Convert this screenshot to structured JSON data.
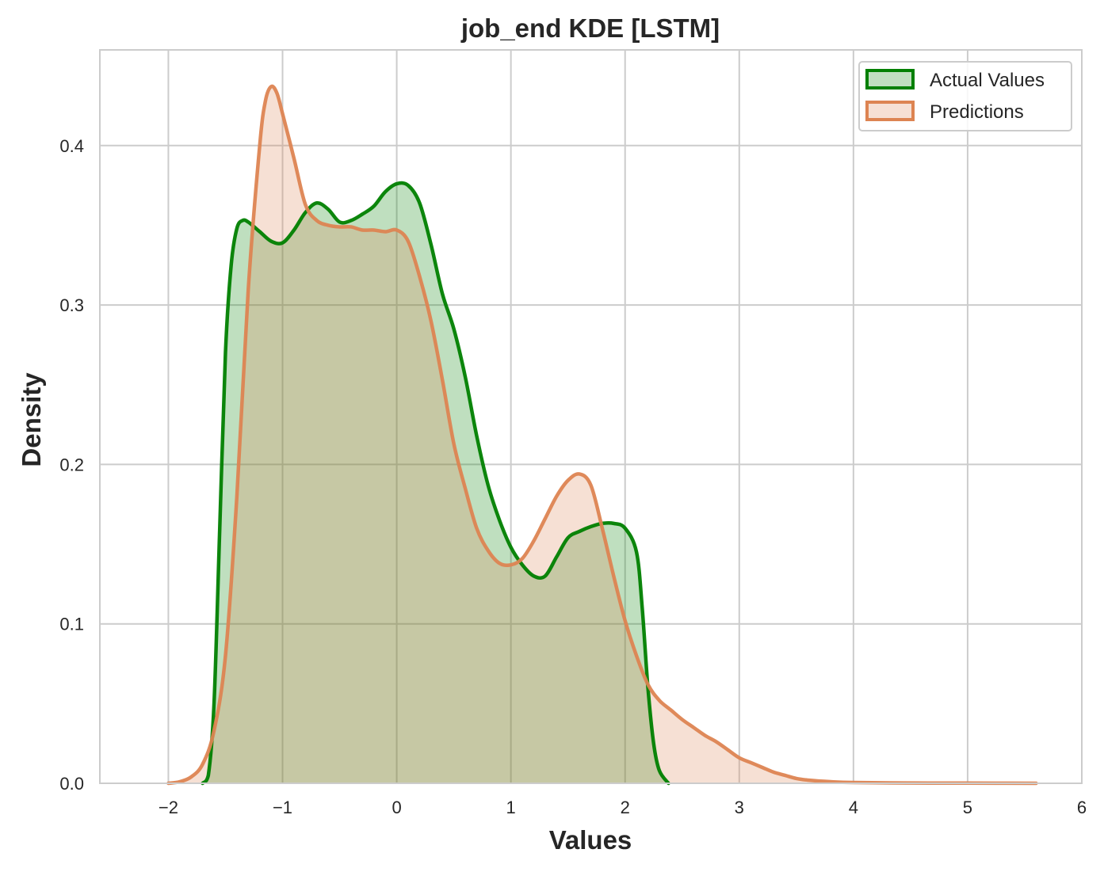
{
  "chart_data": {
    "type": "area",
    "title": "job_end KDE [LSTM]",
    "xlabel": "Values",
    "ylabel": "Density",
    "xlim": [
      -2.6,
      6.0
    ],
    "ylim": [
      0.0,
      0.46
    ],
    "x_ticks": [
      -2,
      -1,
      0,
      1,
      2,
      3,
      4,
      5,
      6
    ],
    "x_tick_labels": [
      "−2",
      "−1",
      "0",
      "1",
      "2",
      "3",
      "4",
      "5",
      "6"
    ],
    "y_ticks": [
      0.0,
      0.1,
      0.2,
      0.3,
      0.4
    ],
    "y_tick_labels": [
      "0.0",
      "0.1",
      "0.2",
      "0.3",
      "0.4"
    ],
    "grid": true,
    "legend_position": "top-right",
    "series": [
      {
        "name": "Actual Values",
        "color": "#008000",
        "points": [
          [
            -1.7,
            0.0
          ],
          [
            -1.65,
            0.005
          ],
          [
            -1.6,
            0.05
          ],
          [
            -1.55,
            0.16
          ],
          [
            -1.5,
            0.27
          ],
          [
            -1.45,
            0.325
          ],
          [
            -1.4,
            0.348
          ],
          [
            -1.35,
            0.353
          ],
          [
            -1.3,
            0.352
          ],
          [
            -1.2,
            0.346
          ],
          [
            -1.1,
            0.34
          ],
          [
            -1.0,
            0.339
          ],
          [
            -0.9,
            0.347
          ],
          [
            -0.8,
            0.358
          ],
          [
            -0.7,
            0.364
          ],
          [
            -0.6,
            0.36
          ],
          [
            -0.5,
            0.352
          ],
          [
            -0.4,
            0.353
          ],
          [
            -0.3,
            0.357
          ],
          [
            -0.2,
            0.362
          ],
          [
            -0.1,
            0.371
          ],
          [
            0.0,
            0.376
          ],
          [
            0.1,
            0.375
          ],
          [
            0.2,
            0.364
          ],
          [
            0.3,
            0.338
          ],
          [
            0.4,
            0.307
          ],
          [
            0.5,
            0.285
          ],
          [
            0.6,
            0.255
          ],
          [
            0.7,
            0.218
          ],
          [
            0.8,
            0.187
          ],
          [
            0.9,
            0.165
          ],
          [
            1.0,
            0.148
          ],
          [
            1.1,
            0.137
          ],
          [
            1.2,
            0.13
          ],
          [
            1.3,
            0.13
          ],
          [
            1.4,
            0.142
          ],
          [
            1.5,
            0.154
          ],
          [
            1.6,
            0.158
          ],
          [
            1.7,
            0.161
          ],
          [
            1.8,
            0.163
          ],
          [
            1.9,
            0.163
          ],
          [
            2.0,
            0.16
          ],
          [
            2.1,
            0.145
          ],
          [
            2.15,
            0.11
          ],
          [
            2.2,
            0.06
          ],
          [
            2.25,
            0.025
          ],
          [
            2.3,
            0.008
          ],
          [
            2.38,
            0.0
          ]
        ]
      },
      {
        "name": "Predictions",
        "color": "#dd8452",
        "points": [
          [
            -2.0,
            0.0
          ],
          [
            -1.9,
            0.001
          ],
          [
            -1.8,
            0.004
          ],
          [
            -1.7,
            0.012
          ],
          [
            -1.6,
            0.033
          ],
          [
            -1.5,
            0.08
          ],
          [
            -1.4,
            0.18
          ],
          [
            -1.3,
            0.31
          ],
          [
            -1.2,
            0.4
          ],
          [
            -1.15,
            0.428
          ],
          [
            -1.1,
            0.437
          ],
          [
            -1.05,
            0.433
          ],
          [
            -1.0,
            0.42
          ],
          [
            -0.9,
            0.392
          ],
          [
            -0.8,
            0.363
          ],
          [
            -0.7,
            0.353
          ],
          [
            -0.6,
            0.35
          ],
          [
            -0.5,
            0.349
          ],
          [
            -0.4,
            0.349
          ],
          [
            -0.3,
            0.347
          ],
          [
            -0.2,
            0.347
          ],
          [
            -0.1,
            0.346
          ],
          [
            0.0,
            0.347
          ],
          [
            0.1,
            0.34
          ],
          [
            0.2,
            0.318
          ],
          [
            0.3,
            0.29
          ],
          [
            0.4,
            0.253
          ],
          [
            0.5,
            0.213
          ],
          [
            0.6,
            0.185
          ],
          [
            0.7,
            0.16
          ],
          [
            0.8,
            0.146
          ],
          [
            0.9,
            0.138
          ],
          [
            1.0,
            0.137
          ],
          [
            1.1,
            0.141
          ],
          [
            1.2,
            0.152
          ],
          [
            1.3,
            0.166
          ],
          [
            1.4,
            0.18
          ],
          [
            1.5,
            0.19
          ],
          [
            1.6,
            0.194
          ],
          [
            1.7,
            0.187
          ],
          [
            1.8,
            0.16
          ],
          [
            1.9,
            0.13
          ],
          [
            2.0,
            0.102
          ],
          [
            2.1,
            0.08
          ],
          [
            2.2,
            0.062
          ],
          [
            2.3,
            0.052
          ],
          [
            2.4,
            0.046
          ],
          [
            2.5,
            0.04
          ],
          [
            2.6,
            0.035
          ],
          [
            2.7,
            0.03
          ],
          [
            2.8,
            0.026
          ],
          [
            2.9,
            0.021
          ],
          [
            3.0,
            0.016
          ],
          [
            3.1,
            0.013
          ],
          [
            3.2,
            0.01
          ],
          [
            3.3,
            0.007
          ],
          [
            3.4,
            0.005
          ],
          [
            3.5,
            0.003
          ],
          [
            3.6,
            0.002
          ],
          [
            3.8,
            0.001
          ],
          [
            4.0,
            0.0005
          ],
          [
            4.5,
            0.0002
          ],
          [
            5.0,
            0.0001
          ],
          [
            5.6,
            0.0
          ]
        ]
      }
    ]
  }
}
